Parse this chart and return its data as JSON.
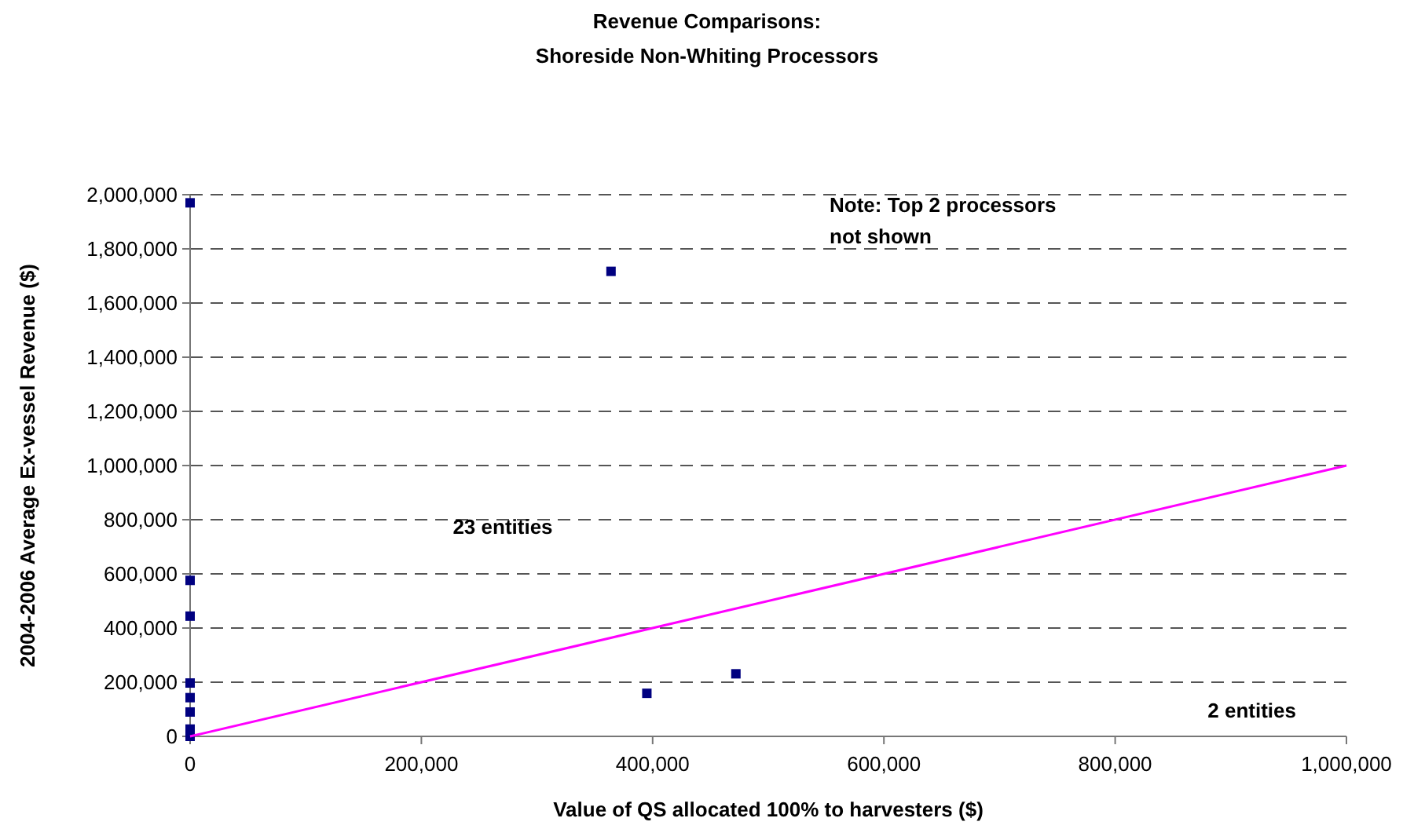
{
  "chart_data": {
    "type": "scatter",
    "title": "Revenue Comparisons:\nShoreside Non-Whiting Processors",
    "xlabel": "Value of QS allocated 100% to harvesters ($)",
    "ylabel": "2004-2006 Average Ex-vessel Revenue ($)",
    "xlim": [
      0,
      1000000
    ],
    "ylim": [
      0,
      2000000
    ],
    "xticks": [
      {
        "value": 0,
        "label": "0"
      },
      {
        "value": 200000,
        "label": "200,000"
      },
      {
        "value": 400000,
        "label": "400,000"
      },
      {
        "value": 600000,
        "label": "600,000"
      },
      {
        "value": 800000,
        "label": "800,000"
      },
      {
        "value": 1000000,
        "label": "1,000,000"
      }
    ],
    "yticks": [
      {
        "value": 0,
        "label": "0"
      },
      {
        "value": 200000,
        "label": "200,000"
      },
      {
        "value": 400000,
        "label": "400,000"
      },
      {
        "value": 600000,
        "label": "600,000"
      },
      {
        "value": 800000,
        "label": "800,000"
      },
      {
        "value": 1000000,
        "label": "1,000,000"
      },
      {
        "value": 1200000,
        "label": "1,200,000"
      },
      {
        "value": 1400000,
        "label": "1,400,000"
      },
      {
        "value": 1600000,
        "label": "1,600,000"
      },
      {
        "value": 1800000,
        "label": "1,800,000"
      },
      {
        "value": 2000000,
        "label": "2,000,000"
      }
    ],
    "grid": "y",
    "marker": "square",
    "series": [
      {
        "color": "#000080",
        "x": [
          0,
          0,
          0,
          0,
          0,
          0,
          0,
          0,
          364000,
          395000,
          472000
        ],
        "values": [
          1970000,
          576000,
          444000,
          197000,
          143000,
          90000,
          27000,
          0,
          1717000,
          159000,
          231000
        ]
      },
      {
        "type": "line",
        "color": "#ff00ff",
        "x": [
          0,
          1000000
        ],
        "values": [
          0,
          1000000
        ],
        "marker": "none"
      }
    ],
    "annotations": [
      "23 entities",
      "2 entities",
      "Note: Top 2 processors\nnot shown"
    ]
  }
}
